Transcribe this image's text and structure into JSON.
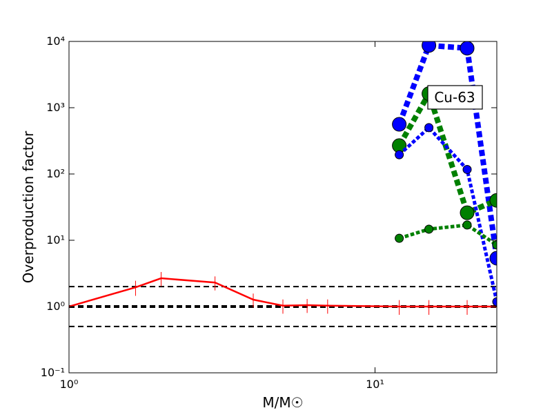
{
  "chart_data": {
    "type": "line",
    "y_label": "Overproduction factor",
    "x_label": "M/M☉",
    "annotation": "Cu-63",
    "xscale": "log",
    "yscale": "log",
    "xlim": [
      1,
      25
    ],
    "ylim": [
      0.1,
      10000
    ],
    "xticks": [
      {
        "value": 1,
        "label": "10⁰"
      },
      {
        "value": 10,
        "label": "10¹"
      }
    ],
    "yticks": [
      {
        "value": 0.1,
        "label": "10⁻¹"
      },
      {
        "value": 1,
        "label": "10⁰"
      },
      {
        "value": 10,
        "label": "10¹"
      },
      {
        "value": 100,
        "label": "10²"
      },
      {
        "value": 1000,
        "label": "10³"
      },
      {
        "value": 10000,
        "label": "10⁴"
      }
    ],
    "hlines": [
      {
        "value": 2,
        "width": 2
      },
      {
        "value": 1,
        "width": 4
      },
      {
        "value": 0.5,
        "width": 2
      }
    ],
    "series": [
      {
        "color": "#ff0000",
        "style": "solid",
        "linewidth": 2.5,
        "markersize": 0,
        "x": [
          1,
          1.65,
          2,
          3,
          4,
          5,
          6,
          7,
          12,
          15,
          20,
          25
        ],
        "values": [
          1.0,
          1.95,
          2.67,
          2.3,
          1.27,
          1.03,
          1.05,
          1.03,
          1.0,
          1.0,
          1.0,
          1.0
        ],
        "yerr": [
          0.25,
          0.5,
          0.65,
          0.55,
          0.3,
          0.25,
          0.25,
          0.25,
          0.25,
          0.25,
          0.25,
          0.25
        ]
      },
      {
        "color": "#0000ff",
        "style": "dotted",
        "linewidth": 8,
        "markersize": 10,
        "x": [
          12,
          15,
          20,
          25
        ],
        "values": [
          562,
          8700,
          7900,
          5.36
        ]
      },
      {
        "color": "#008000",
        "style": "dotted",
        "linewidth": 8,
        "markersize": 10,
        "x": [
          12,
          15,
          20,
          25
        ],
        "values": [
          268,
          1630,
          26,
          40
        ]
      },
      {
        "color": "#0000ff",
        "style": "dotted",
        "linewidth": 5,
        "markersize": 6,
        "x": [
          12,
          15,
          20,
          25
        ],
        "values": [
          195,
          500,
          117,
          1.18
        ]
      },
      {
        "color": "#008000",
        "style": "dotted",
        "linewidth": 5,
        "markersize": 6,
        "x": [
          12,
          15,
          20,
          25
        ],
        "values": [
          10.7,
          14.7,
          17,
          8.5
        ]
      }
    ]
  }
}
